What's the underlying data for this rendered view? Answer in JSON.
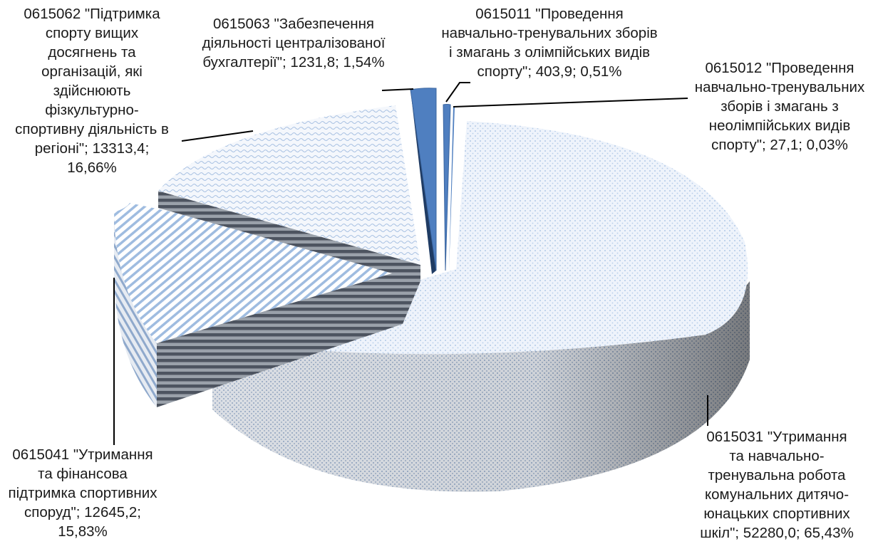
{
  "chart_data": {
    "type": "pie",
    "style": "3d-exploded",
    "colors": {
      "slice_face": "#eaf1fb",
      "pattern_light": "#9fbce0",
      "pattern_dark": "#5b85be",
      "side_dark": "#4d5460",
      "side_mid": "#8a9099",
      "blue_slice": "#4f7fc0",
      "leader": "#000000"
    },
    "slices": [
      {
        "code": "0615011",
        "value": 403.9,
        "percent": 0.51,
        "label_lines": [
          "0615011 \"Проведення",
          "навчально-тренувальних зборів",
          "і змагань з олімпійських видів",
          "спорту\"; 403,9; 0,51%"
        ]
      },
      {
        "code": "0615012",
        "value": 27.1,
        "percent": 0.03,
        "label_lines": [
          "0615012 \"Проведення",
          "навчально-тренувальних",
          "зборів і змагань з",
          "неолімпійських видів",
          "спорту\"; 27,1; 0,03%"
        ]
      },
      {
        "code": "0615031",
        "value": 52280.0,
        "percent": 65.43,
        "label_lines": [
          "0615031 \"Утримання",
          "та навчально-",
          "тренувальна робота",
          "комунальних дитячо-",
          "юнацьких спортивних",
          "шкіл\"; 52280,0; 65,43%"
        ]
      },
      {
        "code": "0615041",
        "value": 12645.2,
        "percent": 15.83,
        "label_lines": [
          "0615041 \"Утримання",
          "та фінансова",
          "підтримка спортивних",
          "споруд\"; 12645,2;",
          "15,83%"
        ]
      },
      {
        "code": "0615062",
        "value": 13313.4,
        "percent": 16.66,
        "label_lines": [
          "0615062 \"Підтримка",
          "спорту вищих",
          "досягнень та",
          "організацій, які",
          "здійснюють",
          "фізкультурно-",
          "спортивну діяльність в",
          "регіоні\"; 13313,4;",
          "16,66%"
        ]
      },
      {
        "code": "0615063",
        "value": 1231.8,
        "percent": 1.54,
        "label_lines": [
          "0615063 \"Забезпечення",
          "діяльності централізованої",
          "бухгалтерії\"; 1231,8; 1,54%"
        ]
      }
    ]
  }
}
